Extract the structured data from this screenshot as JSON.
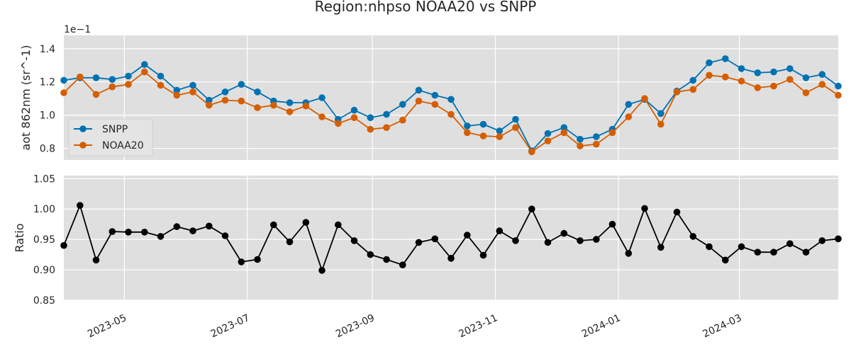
{
  "chart_data": [
    {
      "type": "line",
      "title": "Region:nhpso NOAA20 vs SNPP",
      "ylabel": "aot 862nm (sr^-1)",
      "offset_label": "1e−1",
      "ylim": [
        0.73,
        1.48
      ],
      "yticks": [
        0.8,
        1.0,
        1.2,
        1.4
      ],
      "ytick_labels": [
        "0.8",
        "1.0",
        "1.2",
        "1.4"
      ],
      "xlim": [
        "2023-04-01",
        "2024-04-19"
      ],
      "legend": "center-left",
      "grid": true,
      "x": [
        "2023-04-01",
        "2023-04-09",
        "2023-04-17",
        "2023-04-25",
        "2023-05-03",
        "2023-05-11",
        "2023-05-19",
        "2023-05-27",
        "2023-06-04",
        "2023-06-12",
        "2023-06-20",
        "2023-06-28",
        "2023-07-06",
        "2023-07-14",
        "2023-07-22",
        "2023-07-30",
        "2023-08-07",
        "2023-08-15",
        "2023-08-23",
        "2023-08-31",
        "2023-09-08",
        "2023-09-16",
        "2023-09-24",
        "2023-10-02",
        "2023-10-10",
        "2023-10-18",
        "2023-10-26",
        "2023-11-03",
        "2023-11-11",
        "2023-11-19",
        "2023-11-27",
        "2023-12-05",
        "2023-12-13",
        "2023-12-21",
        "2023-12-29",
        "2024-01-06",
        "2024-01-14",
        "2024-01-22",
        "2024-01-30",
        "2024-02-07",
        "2024-02-15",
        "2024-02-23",
        "2024-03-02",
        "2024-03-10",
        "2024-03-18",
        "2024-03-26",
        "2024-04-03",
        "2024-04-11",
        "2024-04-19"
      ],
      "series": [
        {
          "name": "SNPP",
          "color": "#0072b2",
          "values": [
            1.21,
            1.225,
            1.225,
            1.215,
            1.235,
            1.305,
            1.235,
            1.15,
            1.18,
            1.09,
            1.14,
            1.185,
            1.14,
            1.085,
            1.075,
            1.075,
            1.105,
            0.975,
            1.03,
            0.985,
            1.005,
            1.065,
            1.15,
            1.12,
            1.095,
            0.935,
            0.945,
            0.905,
            0.975,
            0.785,
            0.89,
            0.925,
            0.855,
            0.87,
            0.915,
            1.065,
            1.095,
            1.01,
            1.145,
            1.21,
            1.315,
            1.34,
            1.28,
            1.255,
            1.26,
            1.28,
            1.225,
            1.245,
            1.175
          ]
        },
        {
          "name": "NOAA20",
          "color": "#d55e00",
          "values": [
            1.135,
            1.23,
            1.125,
            1.17,
            1.185,
            1.26,
            1.18,
            1.12,
            1.14,
            1.06,
            1.09,
            1.085,
            1.045,
            1.06,
            1.02,
            1.055,
            0.99,
            0.95,
            0.985,
            0.915,
            0.925,
            0.97,
            1.085,
            1.065,
            1.005,
            0.895,
            0.875,
            0.87,
            0.925,
            0.78,
            0.845,
            0.895,
            0.815,
            0.825,
            0.895,
            0.99,
            1.1,
            0.945,
            1.14,
            1.155,
            1.24,
            1.23,
            1.205,
            1.165,
            1.175,
            1.215,
            1.135,
            1.185,
            1.12
          ]
        }
      ]
    },
    {
      "type": "line",
      "ylabel": "Ratio",
      "ylim": [
        0.85,
        1.055
      ],
      "yticks": [
        0.85,
        0.9,
        0.95,
        1.0,
        1.05
      ],
      "ytick_labels": [
        "0.85",
        "0.90",
        "0.95",
        "1.00",
        "1.05"
      ],
      "xlim": [
        "2023-04-01",
        "2024-04-19"
      ],
      "grid": true,
      "xticks": [
        "2023-05-01",
        "2023-07-01",
        "2023-09-01",
        "2023-11-01",
        "2024-01-01",
        "2024-03-01"
      ],
      "xtick_labels": [
        "2023-05",
        "2023-07",
        "2023-09",
        "2023-11",
        "2024-01",
        "2024-03"
      ],
      "x": [
        "2023-04-01",
        "2023-04-09",
        "2023-04-17",
        "2023-04-25",
        "2023-05-03",
        "2023-05-11",
        "2023-05-19",
        "2023-05-27",
        "2023-06-04",
        "2023-06-12",
        "2023-06-20",
        "2023-06-28",
        "2023-07-06",
        "2023-07-14",
        "2023-07-22",
        "2023-07-30",
        "2023-08-07",
        "2023-08-15",
        "2023-08-23",
        "2023-08-31",
        "2023-09-08",
        "2023-09-16",
        "2023-09-24",
        "2023-10-02",
        "2023-10-10",
        "2023-10-18",
        "2023-10-26",
        "2023-11-03",
        "2023-11-11",
        "2023-11-19",
        "2023-11-27",
        "2023-12-05",
        "2023-12-13",
        "2023-12-21",
        "2023-12-29",
        "2024-01-06",
        "2024-01-14",
        "2024-01-22",
        "2024-01-30",
        "2024-02-07",
        "2024-02-15",
        "2024-02-23",
        "2024-03-02",
        "2024-03-10",
        "2024-03-18",
        "2024-03-26",
        "2024-04-03",
        "2024-04-11",
        "2024-04-19"
      ],
      "series": [
        {
          "color": "#000000",
          "values": [
            0.94,
            1.006,
            0.916,
            0.963,
            0.962,
            0.962,
            0.955,
            0.971,
            0.964,
            0.972,
            0.956,
            0.913,
            0.917,
            0.974,
            0.946,
            0.978,
            0.899,
            0.974,
            0.948,
            0.925,
            0.917,
            0.908,
            0.945,
            0.951,
            0.919,
            0.957,
            0.924,
            0.964,
            0.948,
            1.0,
            0.945,
            0.96,
            0.948,
            0.95,
            0.975,
            0.927,
            1.001,
            0.937,
            0.995,
            0.955,
            0.938,
            0.916,
            0.938,
            0.929,
            0.929,
            0.943,
            0.929,
            0.948,
            0.951
          ]
        }
      ]
    }
  ]
}
